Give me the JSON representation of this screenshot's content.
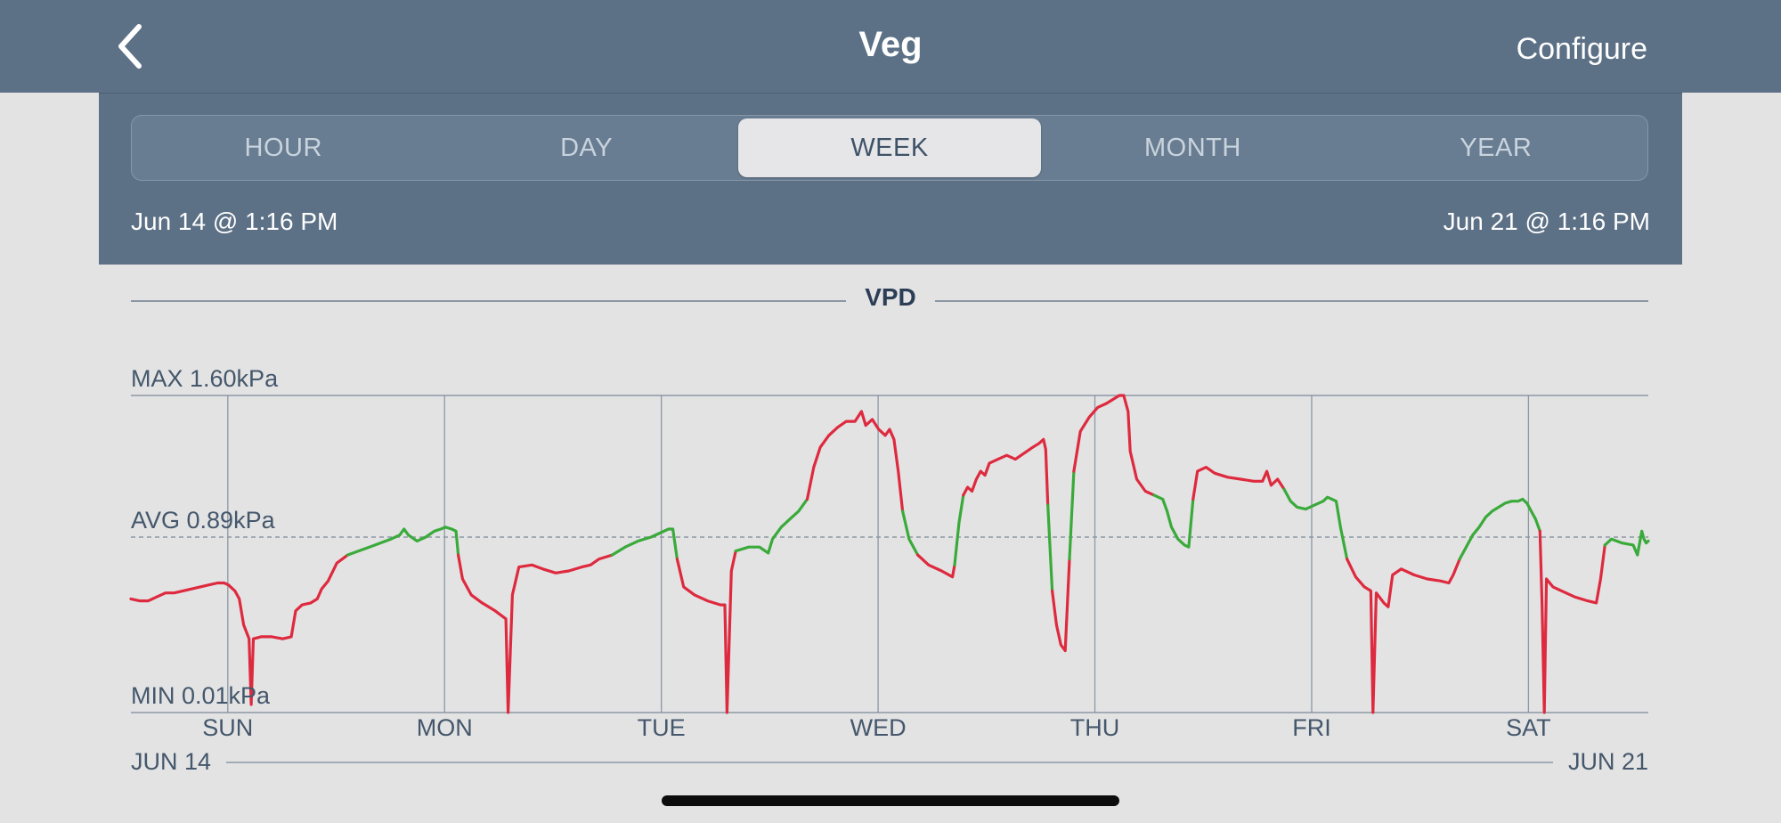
{
  "nav": {
    "title": "Veg",
    "configure_label": "Configure"
  },
  "tabs": [
    {
      "label": "HOUR",
      "active": false
    },
    {
      "label": "DAY",
      "active": false
    },
    {
      "label": "WEEK",
      "active": true
    },
    {
      "label": "MONTH",
      "active": false
    },
    {
      "label": "YEAR",
      "active": false
    }
  ],
  "range": {
    "start": "Jun 14 @ 1:16 PM",
    "end": "Jun 21 @ 1:16 PM"
  },
  "colors": {
    "header": "#5c7086",
    "in_range": "#3aaa3a",
    "out_of_range": "#de2a3e",
    "grid": "#8c97a4"
  },
  "chart_data": {
    "type": "line",
    "title": "VPD",
    "unit": "kPa",
    "ylim": [
      0.01,
      1.6
    ],
    "max_label": "MAX 1.60kPa",
    "avg_label": "AVG 0.89kPa",
    "min_label": "MIN 0.01kPa",
    "avg": 0.89,
    "x_unit": "days since Jun 14 1:16 PM",
    "xlim": [
      0,
      7
    ],
    "day_ticks": [
      {
        "label": "SUN",
        "x": 0.447
      },
      {
        "label": "MON",
        "x": 1.447
      },
      {
        "label": "TUE",
        "x": 2.447
      },
      {
        "label": "WED",
        "x": 3.447
      },
      {
        "label": "THU",
        "x": 4.447
      },
      {
        "label": "FRI",
        "x": 5.447
      },
      {
        "label": "SAT",
        "x": 6.447
      }
    ],
    "start_date_label": "JUN 14",
    "end_date_label": "JUN 21",
    "series": [
      {
        "name": "VPD",
        "points": [
          [
            0.0,
            0.58
          ],
          [
            0.04,
            0.57
          ],
          [
            0.08,
            0.57
          ],
          [
            0.12,
            0.59
          ],
          [
            0.16,
            0.61
          ],
          [
            0.2,
            0.61
          ],
          [
            0.24,
            0.62
          ],
          [
            0.28,
            0.63
          ],
          [
            0.32,
            0.64
          ],
          [
            0.36,
            0.65
          ],
          [
            0.4,
            0.66
          ],
          [
            0.43,
            0.66
          ],
          [
            0.45,
            0.65
          ],
          [
            0.48,
            0.62
          ],
          [
            0.5,
            0.58
          ],
          [
            0.52,
            0.45
          ],
          [
            0.545,
            0.38
          ],
          [
            0.555,
            0.05
          ],
          [
            0.565,
            0.38
          ],
          [
            0.6,
            0.39
          ],
          [
            0.65,
            0.39
          ],
          [
            0.7,
            0.38
          ],
          [
            0.74,
            0.39
          ],
          [
            0.76,
            0.52
          ],
          [
            0.79,
            0.55
          ],
          [
            0.83,
            0.56
          ],
          [
            0.86,
            0.58
          ],
          [
            0.88,
            0.63
          ],
          [
            0.91,
            0.67
          ],
          [
            0.95,
            0.76
          ],
          [
            1.0,
            0.8
          ],
          [
            1.05,
            0.82
          ],
          [
            1.1,
            0.84
          ],
          [
            1.15,
            0.86
          ],
          [
            1.2,
            0.88
          ],
          [
            1.24,
            0.9
          ],
          [
            1.26,
            0.93
          ],
          [
            1.28,
            0.9
          ],
          [
            1.32,
            0.87
          ],
          [
            1.36,
            0.89
          ],
          [
            1.4,
            0.92
          ],
          [
            1.43,
            0.93
          ],
          [
            1.45,
            0.94
          ],
          [
            1.48,
            0.93
          ],
          [
            1.5,
            0.92
          ],
          [
            1.51,
            0.8
          ],
          [
            1.53,
            0.68
          ],
          [
            1.57,
            0.6
          ],
          [
            1.62,
            0.56
          ],
          [
            1.68,
            0.52
          ],
          [
            1.73,
            0.48
          ],
          [
            1.74,
            0.01
          ],
          [
            1.76,
            0.6
          ],
          [
            1.79,
            0.74
          ],
          [
            1.85,
            0.75
          ],
          [
            1.9,
            0.73
          ],
          [
            1.96,
            0.71
          ],
          [
            2.02,
            0.72
          ],
          [
            2.08,
            0.74
          ],
          [
            2.12,
            0.75
          ],
          [
            2.16,
            0.78
          ],
          [
            2.22,
            0.8
          ],
          [
            2.28,
            0.84
          ],
          [
            2.34,
            0.87
          ],
          [
            2.4,
            0.89
          ],
          [
            2.44,
            0.91
          ],
          [
            2.48,
            0.93
          ],
          [
            2.5,
            0.93
          ],
          [
            2.52,
            0.78
          ],
          [
            2.55,
            0.64
          ],
          [
            2.6,
            0.6
          ],
          [
            2.66,
            0.57
          ],
          [
            2.72,
            0.55
          ],
          [
            2.74,
            0.55
          ],
          [
            2.75,
            0.01
          ],
          [
            2.77,
            0.72
          ],
          [
            2.79,
            0.82
          ],
          [
            2.85,
            0.84
          ],
          [
            2.9,
            0.84
          ],
          [
            2.94,
            0.81
          ],
          [
            2.96,
            0.88
          ],
          [
            3.0,
            0.94
          ],
          [
            3.04,
            0.98
          ],
          [
            3.08,
            1.02
          ],
          [
            3.12,
            1.08
          ],
          [
            3.15,
            1.24
          ],
          [
            3.18,
            1.34
          ],
          [
            3.22,
            1.4
          ],
          [
            3.26,
            1.44
          ],
          [
            3.3,
            1.47
          ],
          [
            3.34,
            1.47
          ],
          [
            3.37,
            1.52
          ],
          [
            3.39,
            1.45
          ],
          [
            3.42,
            1.48
          ],
          [
            3.45,
            1.43
          ],
          [
            3.48,
            1.4
          ],
          [
            3.5,
            1.43
          ],
          [
            3.52,
            1.38
          ],
          [
            3.54,
            1.22
          ],
          [
            3.56,
            1.02
          ],
          [
            3.59,
            0.88
          ],
          [
            3.63,
            0.8
          ],
          [
            3.68,
            0.75
          ],
          [
            3.74,
            0.72
          ],
          [
            3.79,
            0.69
          ],
          [
            3.8,
            0.75
          ],
          [
            3.82,
            0.96
          ],
          [
            3.84,
            1.1
          ],
          [
            3.86,
            1.14
          ],
          [
            3.88,
            1.12
          ],
          [
            3.9,
            1.18
          ],
          [
            3.92,
            1.22
          ],
          [
            3.94,
            1.2
          ],
          [
            3.96,
            1.26
          ],
          [
            4.0,
            1.28
          ],
          [
            4.04,
            1.3
          ],
          [
            4.08,
            1.28
          ],
          [
            4.12,
            1.31
          ],
          [
            4.16,
            1.34
          ],
          [
            4.19,
            1.36
          ],
          [
            4.21,
            1.38
          ],
          [
            4.22,
            1.33
          ],
          [
            4.23,
            1.05
          ],
          [
            4.25,
            0.62
          ],
          [
            4.27,
            0.45
          ],
          [
            4.29,
            0.35
          ],
          [
            4.31,
            0.32
          ],
          [
            4.33,
            0.78
          ],
          [
            4.35,
            1.22
          ],
          [
            4.38,
            1.42
          ],
          [
            4.42,
            1.49
          ],
          [
            4.46,
            1.54
          ],
          [
            4.5,
            1.56
          ],
          [
            4.53,
            1.58
          ],
          [
            4.56,
            1.6
          ],
          [
            4.58,
            1.6
          ],
          [
            4.6,
            1.52
          ],
          [
            4.61,
            1.32
          ],
          [
            4.64,
            1.18
          ],
          [
            4.68,
            1.12
          ],
          [
            4.72,
            1.1
          ],
          [
            4.76,
            1.08
          ],
          [
            4.78,
            1.02
          ],
          [
            4.8,
            0.94
          ],
          [
            4.83,
            0.88
          ],
          [
            4.86,
            0.85
          ],
          [
            4.88,
            0.84
          ],
          [
            4.9,
            1.08
          ],
          [
            4.92,
            1.22
          ],
          [
            4.96,
            1.24
          ],
          [
            5.0,
            1.21
          ],
          [
            5.06,
            1.19
          ],
          [
            5.12,
            1.18
          ],
          [
            5.18,
            1.17
          ],
          [
            5.22,
            1.17
          ],
          [
            5.24,
            1.22
          ],
          [
            5.26,
            1.15
          ],
          [
            5.29,
            1.18
          ],
          [
            5.32,
            1.13
          ],
          [
            5.35,
            1.07
          ],
          [
            5.38,
            1.04
          ],
          [
            5.42,
            1.03
          ],
          [
            5.46,
            1.05
          ],
          [
            5.5,
            1.07
          ],
          [
            5.52,
            1.09
          ],
          [
            5.54,
            1.08
          ],
          [
            5.56,
            1.07
          ],
          [
            5.58,
            0.94
          ],
          [
            5.61,
            0.78
          ],
          [
            5.65,
            0.69
          ],
          [
            5.69,
            0.64
          ],
          [
            5.72,
            0.62
          ],
          [
            5.73,
            0.01
          ],
          [
            5.745,
            0.61
          ],
          [
            5.78,
            0.56
          ],
          [
            5.8,
            0.54
          ],
          [
            5.82,
            0.7
          ],
          [
            5.86,
            0.73
          ],
          [
            5.92,
            0.7
          ],
          [
            5.98,
            0.68
          ],
          [
            6.04,
            0.67
          ],
          [
            6.08,
            0.66
          ],
          [
            6.1,
            0.7
          ],
          [
            6.13,
            0.78
          ],
          [
            6.16,
            0.84
          ],
          [
            6.19,
            0.9
          ],
          [
            6.22,
            0.94
          ],
          [
            6.25,
            0.99
          ],
          [
            6.28,
            1.02
          ],
          [
            6.31,
            1.04
          ],
          [
            6.34,
            1.06
          ],
          [
            6.37,
            1.07
          ],
          [
            6.4,
            1.07
          ],
          [
            6.42,
            1.08
          ],
          [
            6.44,
            1.06
          ],
          [
            6.46,
            1.02
          ],
          [
            6.48,
            0.98
          ],
          [
            6.5,
            0.92
          ],
          [
            6.51,
            0.55
          ],
          [
            6.52,
            0.01
          ],
          [
            6.53,
            0.68
          ],
          [
            6.56,
            0.64
          ],
          [
            6.6,
            0.62
          ],
          [
            6.66,
            0.59
          ],
          [
            6.72,
            0.57
          ],
          [
            6.76,
            0.56
          ],
          [
            6.78,
            0.68
          ],
          [
            6.8,
            0.85
          ],
          [
            6.83,
            0.88
          ],
          [
            6.88,
            0.86
          ],
          [
            6.93,
            0.85
          ],
          [
            6.95,
            0.8
          ],
          [
            6.97,
            0.92
          ],
          [
            6.98,
            0.88
          ],
          [
            6.99,
            0.86
          ],
          [
            7.0,
            0.87
          ]
        ]
      }
    ],
    "target_range": [
      0.8,
      1.1
    ]
  }
}
